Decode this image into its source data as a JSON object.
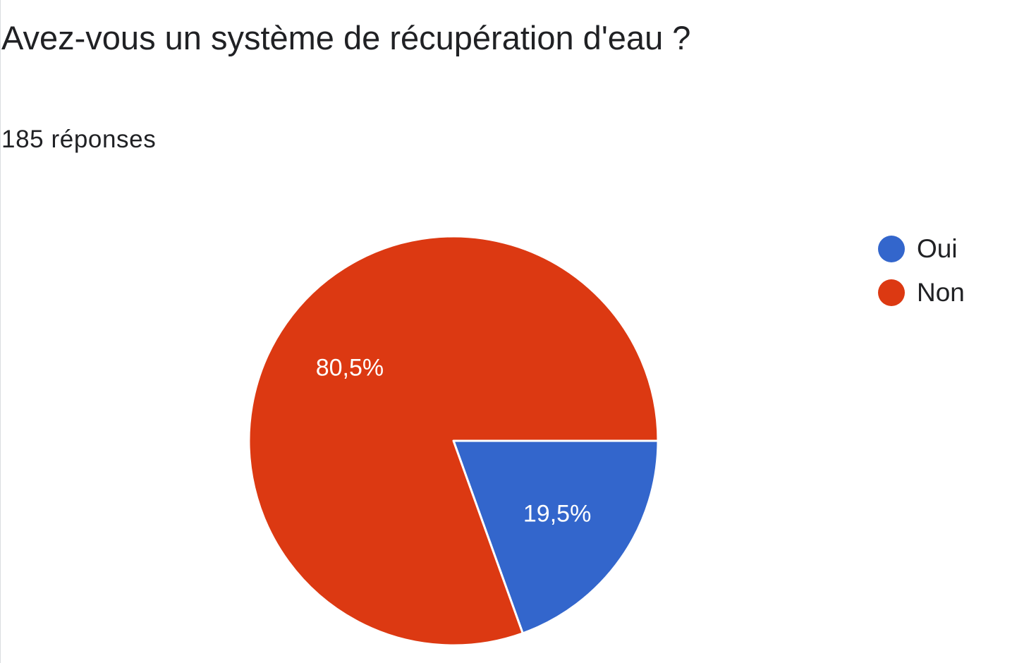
{
  "header": {
    "title": "Avez-vous un système de récupération d'eau ?",
    "response_count": "185 réponses"
  },
  "chart_data": {
    "type": "pie",
    "categories": [
      "Oui",
      "Non"
    ],
    "values": [
      19.5,
      80.5
    ],
    "labels": [
      "19,5%",
      "80,5%"
    ],
    "colors": [
      "#3366cc",
      "#dc3912"
    ],
    "slice_border_color": "#ffffff",
    "label_color": "#ffffff",
    "legend_position": "right",
    "legend": [
      {
        "label": "Oui",
        "color": "#3366cc"
      },
      {
        "label": "Non",
        "color": "#dc3912"
      }
    ]
  }
}
